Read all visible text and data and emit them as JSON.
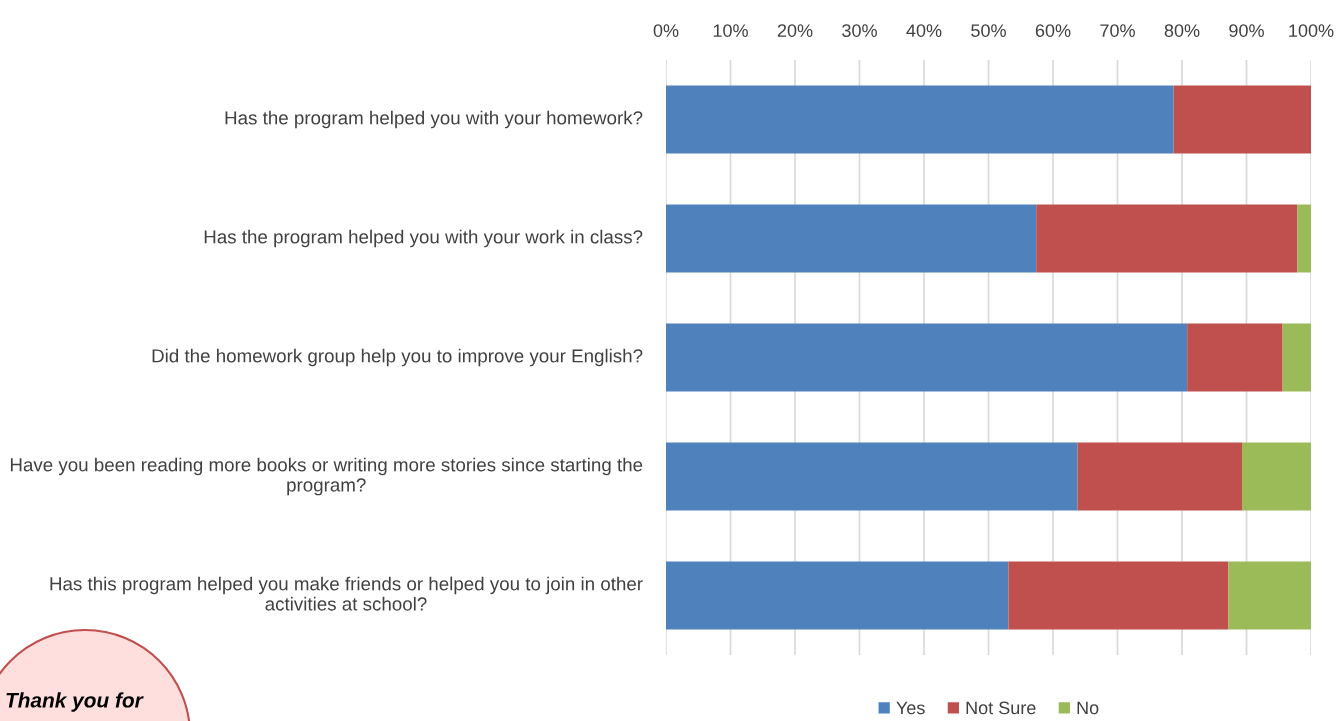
{
  "chart_data": {
    "type": "bar",
    "orientation": "horizontal",
    "stacked": true,
    "categories": [
      "Has the program helped you with your homework?",
      "Has the program helped you with your work in class?",
      "Did the homework group help you to improve your English?",
      "Have you been reading more books or writing more stories since starting the program?",
      "Has this program helped you make friends or helped you to join in other activities at school?"
    ],
    "series": [
      {
        "name": "Yes",
        "color": "#4f81bd",
        "values": [
          78.7,
          57.4,
          80.8,
          63.8,
          53.1
        ]
      },
      {
        "name": "Not Sure",
        "color": "#c0504d",
        "values": [
          21.3,
          40.5,
          14.8,
          25.5,
          34.1
        ]
      },
      {
        "name": "No",
        "color": "#9bbb59",
        "values": [
          0,
          2.1,
          4.4,
          10.7,
          12.8
        ]
      }
    ],
    "xlim": [
      0,
      100
    ],
    "xticks": [
      {
        "value": 0,
        "label": "0%"
      },
      {
        "value": 10,
        "label": "10%"
      },
      {
        "value": 20,
        "label": "20%"
      },
      {
        "value": 30,
        "label": "30%"
      },
      {
        "value": 40,
        "label": "40%"
      },
      {
        "value": 50,
        "label": "50%"
      },
      {
        "value": 60,
        "label": "60%"
      },
      {
        "value": 70,
        "label": "70%"
      },
      {
        "value": 80,
        "label": "80%"
      },
      {
        "value": 90,
        "label": "90%"
      },
      {
        "value": 100,
        "label": "100%"
      }
    ],
    "grid": "x",
    "legend": "bottom",
    "annotations": [
      "Thank you for"
    ]
  }
}
